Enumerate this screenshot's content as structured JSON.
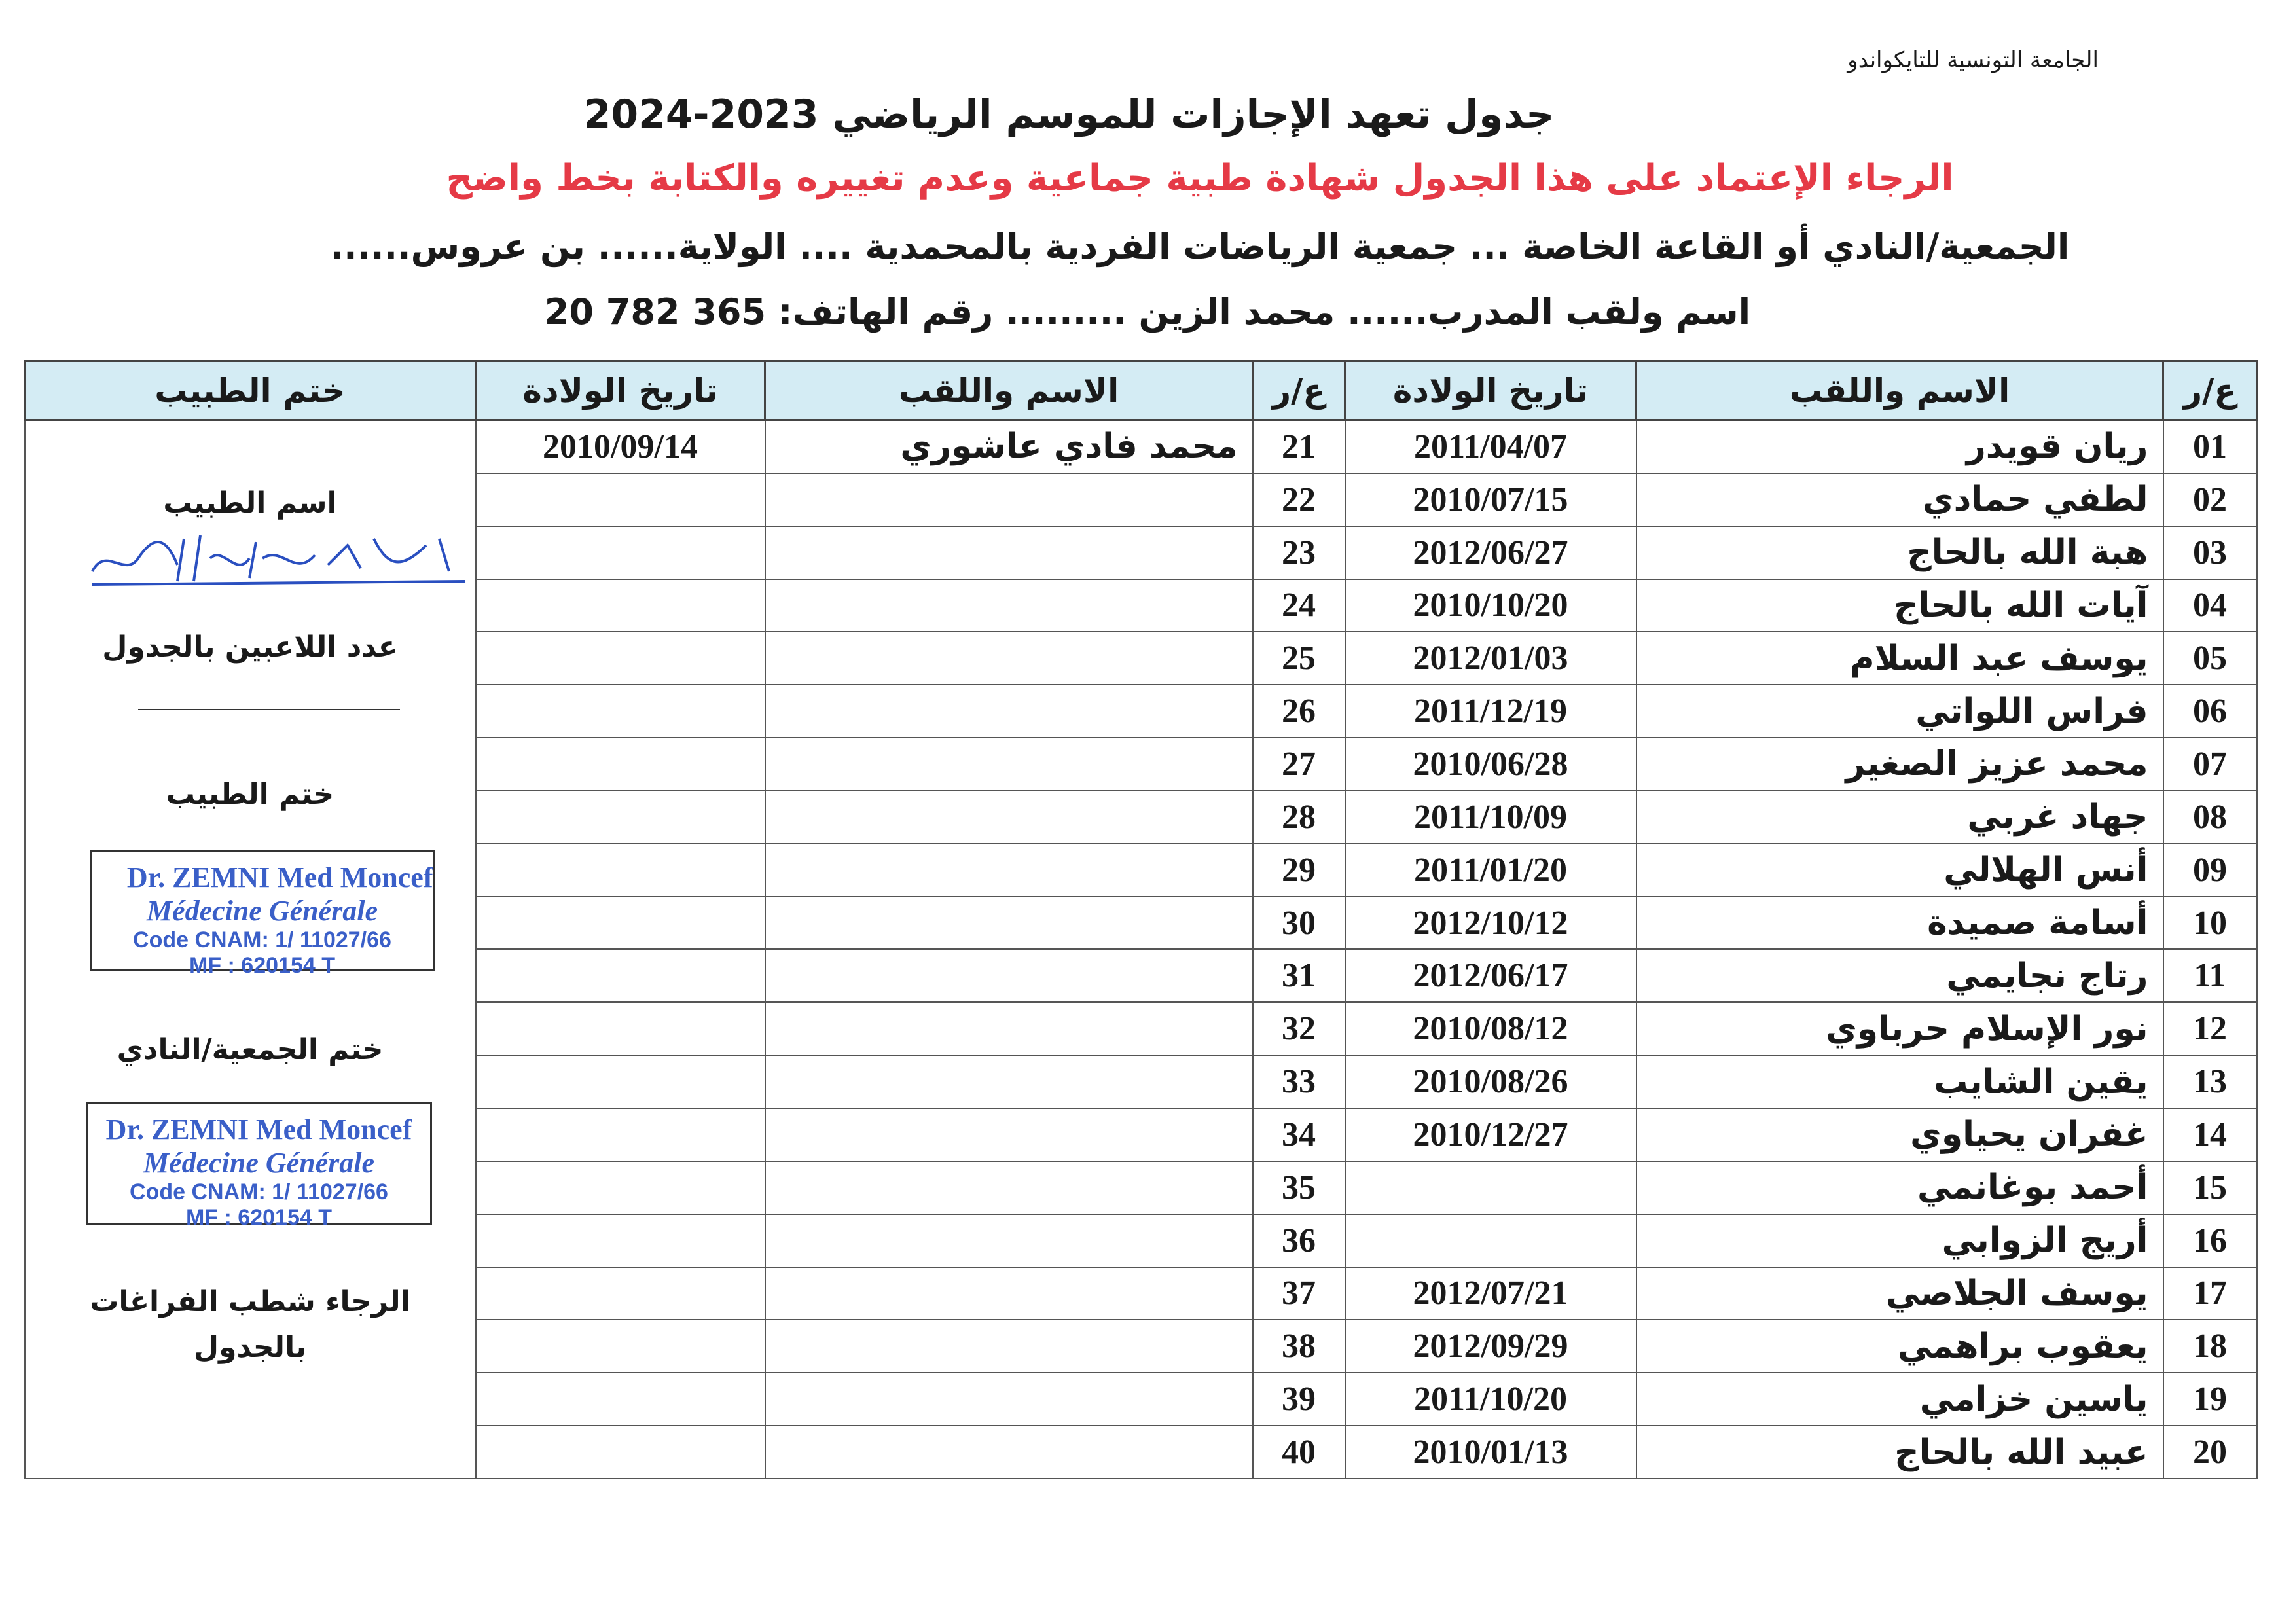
{
  "header": {
    "organization": "الجامعة التونسية للتايكواندو",
    "title": "جدول تعهد الإجازات للموسم الرياضي 2023-2024",
    "notice": "الرجاء الإعتماد على هذا الجدول شهادة طبية جماعية وعدم تغييره والكتابة بخط واضح",
    "club_line": "الجمعية/النادي أو القاعة الخاصة ... جمعية الرياضات الفردية بالمحمدية .... الولاية...... بن عروس......",
    "coach_line": "اسم ولقب المدرب...... محمد الزين ......... رقم الهاتف: 365 782 20",
    "notice_color": "#e53a46",
    "header_bg": "#d4ecf4"
  },
  "table": {
    "columns": {
      "num": "ع/ر",
      "name": "الاسم واللقب",
      "dob": "تاريخ الولادة",
      "doctor_stamp": "ختم الطبيب"
    },
    "left_rows": [
      {
        "num": "01",
        "name": "ريان قويدر",
        "dob": "2011/04/07"
      },
      {
        "num": "02",
        "name": "لطفي حمادي",
        "dob": "2010/07/15"
      },
      {
        "num": "03",
        "name": "هبة الله بالحاج",
        "dob": "2012/06/27"
      },
      {
        "num": "04",
        "name": "آيات الله بالحاج",
        "dob": "2010/10/20"
      },
      {
        "num": "05",
        "name": "يوسف عبد السلام",
        "dob": "2012/01/03"
      },
      {
        "num": "06",
        "name": "فراس اللواتي",
        "dob": "2011/12/19"
      },
      {
        "num": "07",
        "name": "محمد عزيز الصغير",
        "dob": "2010/06/28"
      },
      {
        "num": "08",
        "name": "جهاد غربي",
        "dob": "2011/10/09"
      },
      {
        "num": "09",
        "name": "أنس الهلالي",
        "dob": "2011/01/20"
      },
      {
        "num": "10",
        "name": "أسامة صميدة",
        "dob": "2012/10/12"
      },
      {
        "num": "11",
        "name": "رتاج نجايمي",
        "dob": "2012/06/17"
      },
      {
        "num": "12",
        "name": "نور الإسلام حرباوي",
        "dob": "2010/08/12"
      },
      {
        "num": "13",
        "name": "يقين الشايب",
        "dob": "2010/08/26"
      },
      {
        "num": "14",
        "name": "غفران يحياوي",
        "dob": "2010/12/27"
      },
      {
        "num": "15",
        "name": "أحمد بوغانمي",
        "dob": ""
      },
      {
        "num": "16",
        "name": "أريج الزوابي",
        "dob": ""
      },
      {
        "num": "17",
        "name": "يوسف الجلاصي",
        "dob": "2012/07/21"
      },
      {
        "num": "18",
        "name": "يعقوب براهمي",
        "dob": "2012/09/29"
      },
      {
        "num": "19",
        "name": "ياسين خزامي",
        "dob": "2011/10/20"
      },
      {
        "num": "20",
        "name": "عبيد الله بالحاج",
        "dob": "2010/01/13"
      }
    ],
    "right_rows": [
      {
        "num": "21",
        "name": "محمد فادي عاشوري",
        "dob": "2010/09/14"
      },
      {
        "num": "22",
        "name": "",
        "dob": ""
      },
      {
        "num": "23",
        "name": "",
        "dob": ""
      },
      {
        "num": "24",
        "name": "",
        "dob": ""
      },
      {
        "num": "25",
        "name": "",
        "dob": ""
      },
      {
        "num": "26",
        "name": "",
        "dob": ""
      },
      {
        "num": "27",
        "name": "",
        "dob": ""
      },
      {
        "num": "28",
        "name": "",
        "dob": ""
      },
      {
        "num": "29",
        "name": "",
        "dob": ""
      },
      {
        "num": "30",
        "name": "",
        "dob": ""
      },
      {
        "num": "31",
        "name": "",
        "dob": ""
      },
      {
        "num": "32",
        "name": "",
        "dob": ""
      },
      {
        "num": "33",
        "name": "",
        "dob": ""
      },
      {
        "num": "34",
        "name": "",
        "dob": ""
      },
      {
        "num": "35",
        "name": "",
        "dob": ""
      },
      {
        "num": "36",
        "name": "",
        "dob": ""
      },
      {
        "num": "37",
        "name": "",
        "dob": ""
      },
      {
        "num": "38",
        "name": "",
        "dob": ""
      },
      {
        "num": "39",
        "name": "",
        "dob": ""
      },
      {
        "num": "40",
        "name": "",
        "dob": ""
      }
    ]
  },
  "doctor_panel": {
    "doctor_name_label": "اسم الطبيب",
    "player_count_label": "عدد اللاعبين بالجدول",
    "doctor_stamp_label": "ختم الطبيب",
    "club_stamp_label": "ختم الجمعية/النادي",
    "cross_out_note_1": "الرجاء شطب الفراغات",
    "cross_out_note_2": "بالجدول",
    "stamp": {
      "line1": "Dr. ZEMNI Med Moncef",
      "line2": "Médecine Générale",
      "line3": "Code CNAM: 1/ 11027/66",
      "line4": "MF : 620154 T",
      "color": "#3a5fc8"
    },
    "signature_color": "#2a4fc0"
  }
}
